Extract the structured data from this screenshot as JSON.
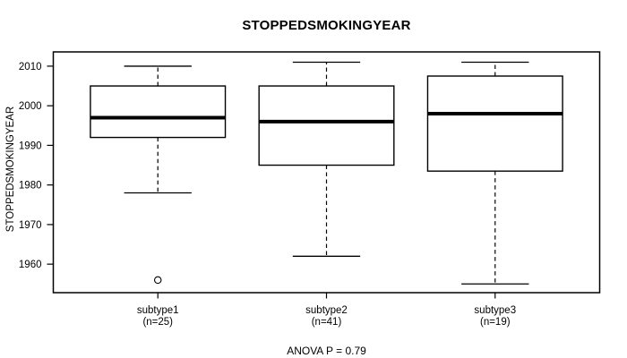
{
  "chart_data": {
    "type": "boxplot",
    "title": "STOPPEDSMOKINGYEAR",
    "ylabel": "STOPPEDSMOKINGYEAR",
    "footnote": "ANOVA P = 0.79",
    "grid": false,
    "y_ticks": [
      1960,
      1970,
      1980,
      1990,
      2000,
      2010
    ],
    "ylim": [
      1952.8,
      2013.6
    ],
    "line_color": "#000000",
    "groups": [
      {
        "label": "subtype1",
        "sublabel": "(n=25)",
        "whisker_low": 1978,
        "q1": 1992,
        "median": 1997,
        "q3": 2005,
        "whisker_high": 2010,
        "outliers": [
          1956
        ]
      },
      {
        "label": "subtype2",
        "sublabel": "(n=41)",
        "whisker_low": 1962,
        "q1": 1985,
        "median": 1996,
        "q3": 2005,
        "whisker_high": 2011,
        "outliers": []
      },
      {
        "label": "subtype3",
        "sublabel": "(n=19)",
        "whisker_low": 1955,
        "q1": 1983.5,
        "median": 1998,
        "q3": 2007.5,
        "whisker_high": 2011,
        "outliers": []
      }
    ]
  }
}
